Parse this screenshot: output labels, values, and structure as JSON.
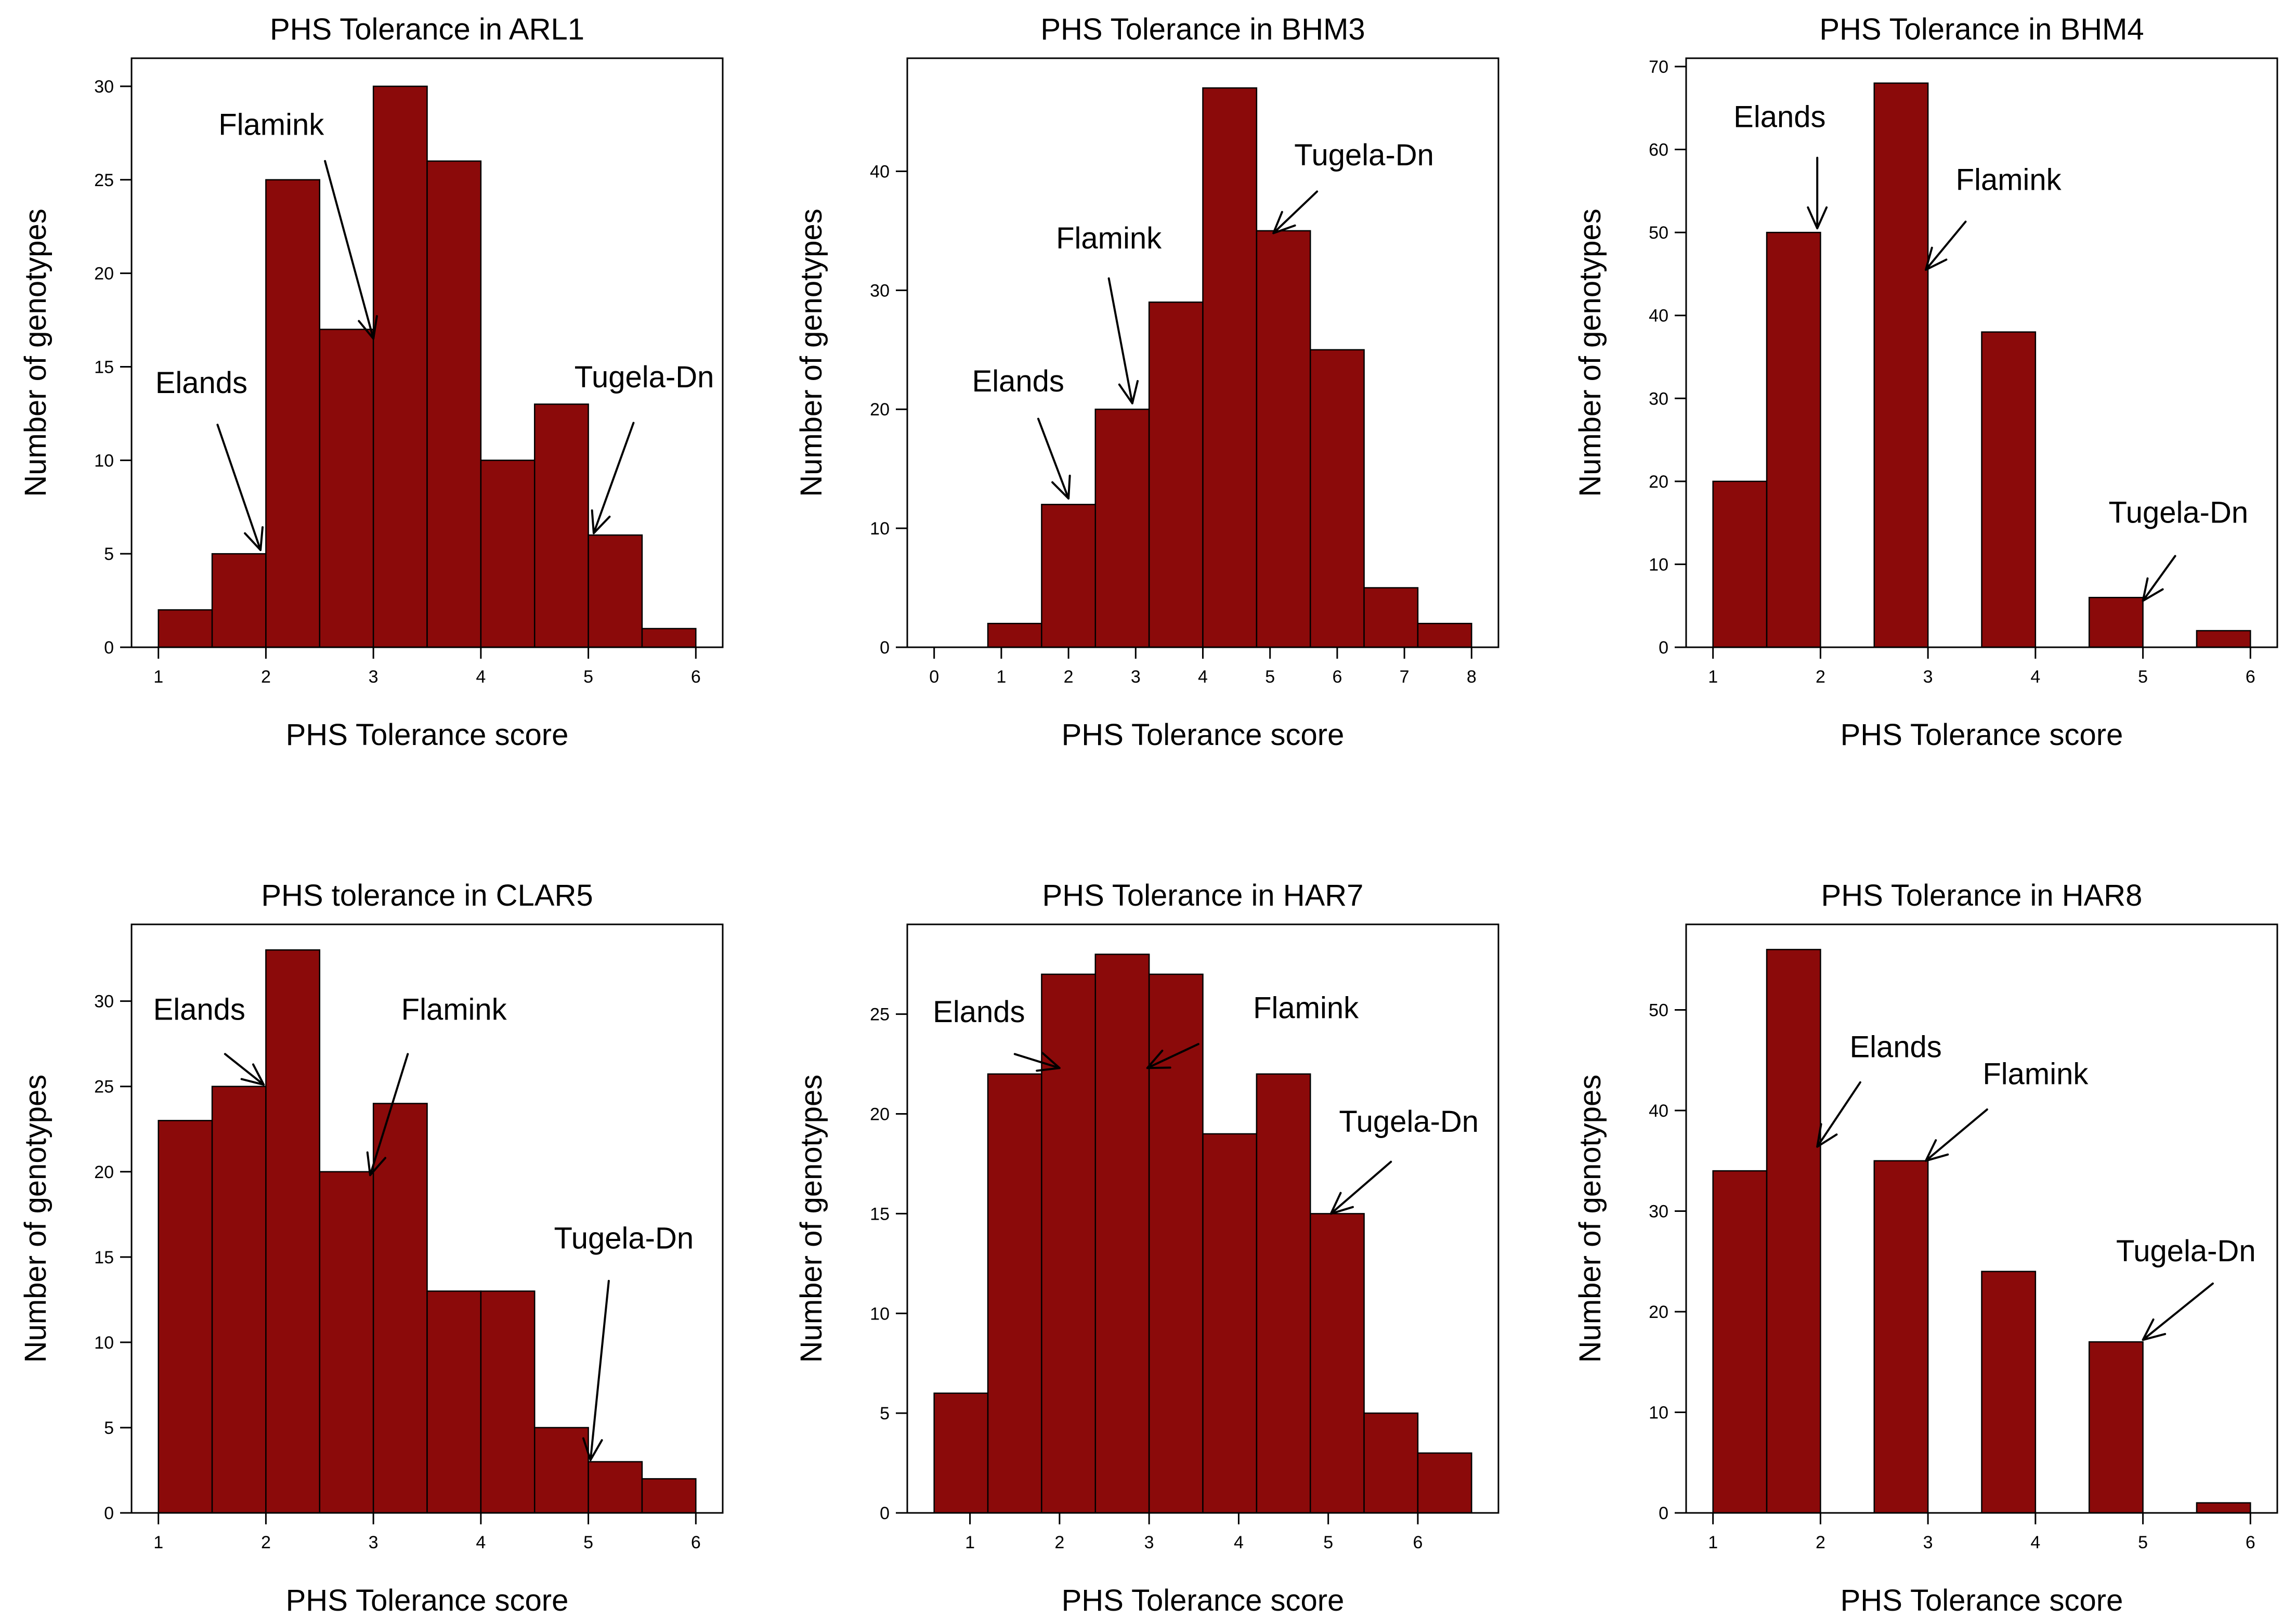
{
  "figure": {
    "bar_color": "#8b0a0a",
    "frame_color": "#000000"
  },
  "chart_data": [
    {
      "type": "bar",
      "title": "PHS Tolerance in ARL1",
      "xlabel": "PHS Tolerance score",
      "ylabel": "Number of genotypes",
      "xlim": [
        0.75,
        6.25
      ],
      "ylim": [
        0,
        31.5
      ],
      "xticks": [
        1,
        2,
        3,
        4,
        5,
        6
      ],
      "yticks": [
        0,
        5,
        10,
        15,
        20,
        25,
        30
      ],
      "bin_width": 0.5,
      "bins": [
        {
          "x0": 1.0,
          "value": 2
        },
        {
          "x0": 1.5,
          "value": 5
        },
        {
          "x0": 2.0,
          "value": 25
        },
        {
          "x0": 2.5,
          "value": 17
        },
        {
          "x0": 3.0,
          "value": 30
        },
        {
          "x0": 3.5,
          "value": 26
        },
        {
          "x0": 4.0,
          "value": 10
        },
        {
          "x0": 4.5,
          "value": 13
        },
        {
          "x0": 5.0,
          "value": 6
        },
        {
          "x0": 5.5,
          "value": 1
        }
      ],
      "annotations": [
        {
          "text": "Elands",
          "label_x": 1.4,
          "label_y": 13.6,
          "arrow_from": [
            1.55,
            11.9
          ],
          "arrow_to": [
            1.95,
            5.2
          ]
        },
        {
          "text": "Flamink",
          "label_x": 2.05,
          "label_y": 27.4,
          "arrow_from": [
            2.55,
            26.0
          ],
          "arrow_to": [
            3.0,
            16.5
          ]
        },
        {
          "text": "Tugela-Dn",
          "label_x": 5.52,
          "label_y": 13.9,
          "arrow_from": [
            5.42,
            12.0
          ],
          "arrow_to": [
            5.05,
            6.1
          ]
        }
      ]
    },
    {
      "type": "bar",
      "title": "PHS Tolerance in BHM3",
      "xlabel": "PHS Tolerance score",
      "ylabel": "Number of genotypes",
      "xlim": [
        -0.4,
        8.4
      ],
      "ylim": [
        0,
        49.5
      ],
      "xticks": [
        0,
        1,
        2,
        3,
        4,
        5,
        6,
        7,
        8
      ],
      "yticks": [
        0,
        10,
        20,
        30,
        40
      ],
      "bin_width": 0.8,
      "bins": [
        {
          "x0": 0.8,
          "value": 2
        },
        {
          "x0": 1.6,
          "value": 12
        },
        {
          "x0": 2.4,
          "value": 20
        },
        {
          "x0": 3.2,
          "value": 29
        },
        {
          "x0": 4.0,
          "value": 47
        },
        {
          "x0": 4.8,
          "value": 35
        },
        {
          "x0": 5.6,
          "value": 25
        },
        {
          "x0": 6.4,
          "value": 5
        },
        {
          "x0": 7.2,
          "value": 2
        }
      ],
      "annotations": [
        {
          "text": "Elands",
          "label_x": 1.25,
          "label_y": 21.5,
          "arrow_from": [
            1.55,
            19.2
          ],
          "arrow_to": [
            2.0,
            12.5
          ]
        },
        {
          "text": "Flamink",
          "label_x": 2.6,
          "label_y": 33.5,
          "arrow_from": [
            2.6,
            31.0
          ],
          "arrow_to": [
            2.95,
            20.5
          ]
        },
        {
          "text": "Tugela-Dn",
          "label_x": 6.4,
          "label_y": 40.5,
          "arrow_from": [
            5.7,
            38.3
          ],
          "arrow_to": [
            5.05,
            34.8
          ]
        }
      ]
    },
    {
      "type": "bar",
      "title": "PHS Tolerance in BHM4",
      "xlabel": "PHS Tolerance score",
      "ylabel": "Number of genotypes",
      "xlim": [
        0.75,
        6.25
      ],
      "ylim": [
        0,
        71
      ],
      "xticks": [
        1,
        2,
        3,
        4,
        5,
        6
      ],
      "yticks": [
        0,
        10,
        20,
        30,
        40,
        50,
        60,
        70
      ],
      "bin_width": 0.5,
      "bins": [
        {
          "x0": 1.0,
          "value": 20
        },
        {
          "x0": 1.5,
          "value": 50
        },
        {
          "x0": 2.0,
          "value": 0
        },
        {
          "x0": 2.5,
          "value": 68
        },
        {
          "x0": 3.0,
          "value": 0
        },
        {
          "x0": 3.5,
          "value": 38
        },
        {
          "x0": 4.0,
          "value": 0
        },
        {
          "x0": 4.5,
          "value": 6
        },
        {
          "x0": 5.0,
          "value": 0
        },
        {
          "x0": 5.5,
          "value": 2
        }
      ],
      "annotations": [
        {
          "text": "Elands",
          "label_x": 1.62,
          "label_y": 62.7,
          "arrow_from": [
            1.97,
            59.0
          ],
          "arrow_to": [
            1.97,
            50.5
          ]
        },
        {
          "text": "Flamink",
          "label_x": 3.75,
          "label_y": 55.1,
          "arrow_from": [
            3.35,
            51.3
          ],
          "arrow_to": [
            2.98,
            45.5
          ]
        },
        {
          "text": "Tugela-Dn",
          "label_x": 5.33,
          "label_y": 15.0,
          "arrow_from": [
            5.3,
            11.0
          ],
          "arrow_to": [
            5.0,
            5.6
          ]
        }
      ]
    },
    {
      "type": "bar",
      "title": "PHS tolerance in CLAR5",
      "xlabel": "PHS Tolerance score",
      "ylabel": "Number of genotypes",
      "xlim": [
        0.75,
        6.25
      ],
      "ylim": [
        0,
        34.5
      ],
      "xticks": [
        1,
        2,
        3,
        4,
        5,
        6
      ],
      "yticks": [
        0,
        5,
        10,
        15,
        20,
        25,
        30
      ],
      "bin_width": 0.5,
      "bins": [
        {
          "x0": 1.0,
          "value": 23
        },
        {
          "x0": 1.5,
          "value": 25
        },
        {
          "x0": 2.0,
          "value": 33
        },
        {
          "x0": 2.5,
          "value": 20
        },
        {
          "x0": 3.0,
          "value": 24
        },
        {
          "x0": 3.5,
          "value": 13
        },
        {
          "x0": 4.0,
          "value": 13
        },
        {
          "x0": 4.5,
          "value": 5
        },
        {
          "x0": 5.0,
          "value": 3
        },
        {
          "x0": 5.5,
          "value": 2
        }
      ],
      "annotations": [
        {
          "text": "Elands",
          "label_x": 1.38,
          "label_y": 28.9,
          "arrow_from": [
            1.62,
            26.9
          ],
          "arrow_to": [
            1.98,
            25.1
          ]
        },
        {
          "text": "Flamink",
          "label_x": 3.75,
          "label_y": 28.9,
          "arrow_from": [
            3.32,
            26.9
          ],
          "arrow_to": [
            2.97,
            19.8
          ]
        },
        {
          "text": "Tugela-Dn",
          "label_x": 5.33,
          "label_y": 15.5,
          "arrow_from": [
            5.19,
            13.6
          ],
          "arrow_to": [
            5.02,
            3.1
          ]
        }
      ]
    },
    {
      "type": "bar",
      "title": "PHS Tolerance in HAR7",
      "xlabel": "PHS Tolerance score",
      "ylabel": "Number of genotypes",
      "xlim": [
        0.3,
        6.9
      ],
      "ylim": [
        0,
        29.5
      ],
      "xticks": [
        1,
        2,
        3,
        4,
        5,
        6
      ],
      "yticks": [
        0,
        5,
        10,
        15,
        20,
        25
      ],
      "bin_width": 0.6,
      "bins": [
        {
          "x0": 0.6,
          "value": 6
        },
        {
          "x0": 1.2,
          "value": 22
        },
        {
          "x0": 1.8,
          "value": 27
        },
        {
          "x0": 2.4,
          "value": 28
        },
        {
          "x0": 3.0,
          "value": 27
        },
        {
          "x0": 3.6,
          "value": 19
        },
        {
          "x0": 4.2,
          "value": 22
        },
        {
          "x0": 4.8,
          "value": 15
        },
        {
          "x0": 5.4,
          "value": 5
        },
        {
          "x0": 6.0,
          "value": 3
        }
      ],
      "annotations": [
        {
          "text": "Elands",
          "label_x": 1.1,
          "label_y": 24.6,
          "arrow_from": [
            1.5,
            23.0
          ],
          "arrow_to": [
            2.0,
            22.3
          ]
        },
        {
          "text": "Flamink",
          "label_x": 4.75,
          "label_y": 24.8,
          "arrow_from": [
            3.55,
            23.5
          ],
          "arrow_to": [
            2.98,
            22.3
          ]
        },
        {
          "text": "Tugela-Dn",
          "label_x": 5.9,
          "label_y": 19.1,
          "arrow_from": [
            5.7,
            17.6
          ],
          "arrow_to": [
            5.03,
            15.0
          ]
        }
      ]
    },
    {
      "type": "bar",
      "title": "PHS Tolerance in HAR8",
      "xlabel": "PHS Tolerance score",
      "ylabel": "Number of genotypes",
      "xlim": [
        0.75,
        6.25
      ],
      "ylim": [
        0,
        58.5
      ],
      "xticks": [
        1,
        2,
        3,
        4,
        5,
        6
      ],
      "yticks": [
        0,
        10,
        20,
        30,
        40,
        50
      ],
      "bin_width": 0.5,
      "bins": [
        {
          "x0": 1.0,
          "value": 34
        },
        {
          "x0": 1.5,
          "value": 56
        },
        {
          "x0": 2.0,
          "value": 0
        },
        {
          "x0": 2.5,
          "value": 35
        },
        {
          "x0": 3.0,
          "value": 0
        },
        {
          "x0": 3.5,
          "value": 24
        },
        {
          "x0": 4.0,
          "value": 0
        },
        {
          "x0": 4.5,
          "value": 17
        },
        {
          "x0": 5.0,
          "value": 0
        },
        {
          "x0": 5.5,
          "value": 1
        }
      ],
      "annotations": [
        {
          "text": "Elands",
          "label_x": 2.7,
          "label_y": 45.3,
          "arrow_from": [
            2.37,
            42.8
          ],
          "arrow_to": [
            1.97,
            36.4
          ]
        },
        {
          "text": "Flamink",
          "label_x": 4.0,
          "label_y": 42.6,
          "arrow_from": [
            3.55,
            40.1
          ],
          "arrow_to": [
            2.98,
            35.0
          ]
        },
        {
          "text": "Tugela-Dn",
          "label_x": 5.4,
          "label_y": 25.0,
          "arrow_from": [
            5.65,
            22.8
          ],
          "arrow_to": [
            5.0,
            17.2
          ]
        }
      ]
    }
  ]
}
